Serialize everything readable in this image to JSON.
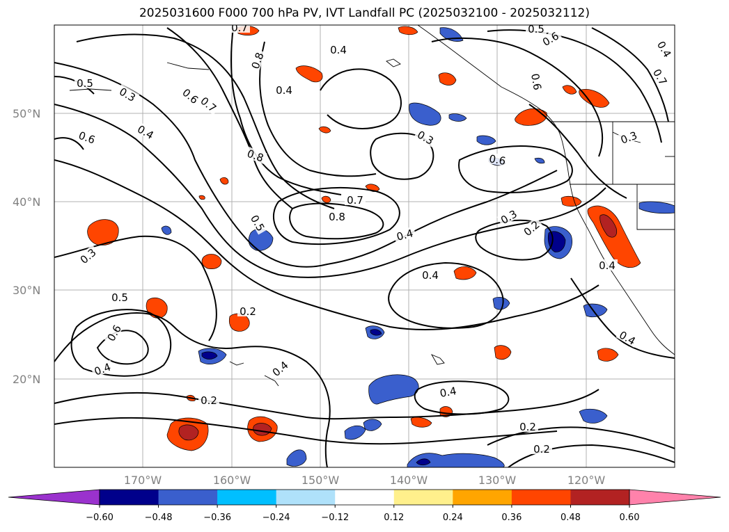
{
  "title": "2025031600 F000 700 hPa PV, IVT Landfall PC (2025032100 - 2025032112)",
  "map": {
    "lat_labels": [
      "50°N",
      "40°N",
      "30°N",
      "20°N"
    ],
    "lon_labels": [
      "170°W",
      "160°W",
      "150°W",
      "140°W",
      "130°W",
      "120°W"
    ],
    "contour_labels": [
      "0.5",
      "0.3",
      "0.6",
      "0.4",
      "0.6",
      "0.7",
      "0.8",
      "0.8",
      "0.4",
      "0.4",
      "0.7",
      "0.6",
      "0.5",
      "0.6",
      "0.7",
      "0.4",
      "0.3",
      "0.6",
      "0.3",
      "0.5",
      "0.7",
      "0.8",
      "0.4",
      "0.3",
      "0.2",
      "0.4",
      "0.3",
      "0.5",
      "0.6",
      "0.4",
      "0.2",
      "0.4",
      "0.2",
      "0.4",
      "0.2",
      "0.2",
      "0.4",
      "0.4"
    ]
  },
  "colorbar": {
    "colors": [
      "#9a32cd",
      "#00008b",
      "#3a5fcd",
      "#00bfff",
      "#afe1fa",
      "#ffffff",
      "#fff08c",
      "#ffa500",
      "#ff4500",
      "#b22222",
      "#ff82ab"
    ],
    "ticks": [
      "−0.60",
      "−0.48",
      "−0.36",
      "−0.24",
      "−0.12",
      "0.12",
      "0.24",
      "0.36",
      "0.48",
      "0.60"
    ]
  }
}
